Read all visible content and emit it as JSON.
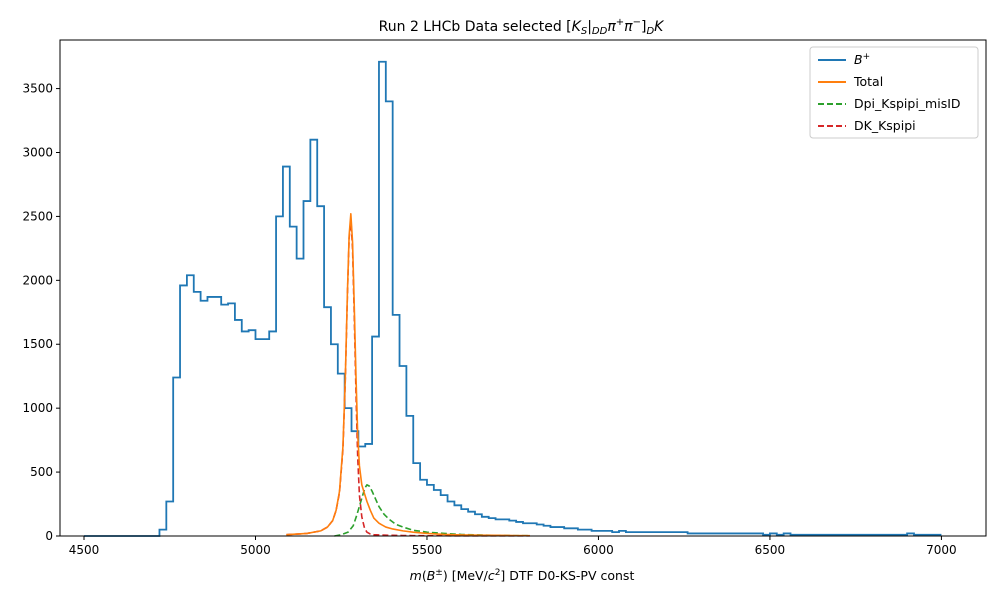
{
  "chart_data": {
    "type": "line",
    "title": "Run 2 LHCb Data selected [K_S|_{DD}π⁺π⁻]_D K",
    "title_parts": {
      "prefix": "Run 2 LHCb Data selected [",
      "k": "K",
      "k_sub": "S",
      "bar": "|",
      "dd_sub": "DD",
      "pi1": "π",
      "pi1_sup": "+",
      "pi2": "π",
      "pi2_sup": "−",
      "close": "]",
      "d_sub": "D",
      "suffix": "K"
    },
    "xlabel": "m(B^±) [MeV/c^2] DTF D0-KS-PV const",
    "xlabel_parts": {
      "m": "m",
      "open": "(",
      "b": "B",
      "b_sup": "±",
      "mid": ") [MeV/",
      "c": "c",
      "c_sup": "2",
      "suffix": "] DTF D0-KS-PV const"
    },
    "ylabel": "",
    "xlim": [
      4430,
      7130
    ],
    "ylim": [
      0,
      3880
    ],
    "xticks": [
      4500,
      5000,
      5500,
      6000,
      6500,
      7000
    ],
    "yticks": [
      0,
      500,
      1000,
      1500,
      2000,
      2500,
      3000,
      3500
    ],
    "grid": false,
    "legend_position": "top-right",
    "legend": [
      "B^+",
      "Total",
      "Dpi_Kspipi_misID",
      "DK_Kspipi"
    ],
    "histogram": {
      "name": "B^+",
      "color": "#1f77b4",
      "bin_start": 4500,
      "bin_width": 20,
      "counts": [
        0,
        0,
        0,
        0,
        0,
        0,
        0,
        0,
        0,
        0,
        0,
        50,
        270,
        1240,
        1960,
        2040,
        1910,
        1840,
        1870,
        1870,
        1810,
        1820,
        1690,
        1600,
        1610,
        1540,
        1540,
        1600,
        2500,
        2890,
        2420,
        2170,
        2620,
        3100,
        2580,
        1790,
        1500,
        1270,
        1000,
        820,
        700,
        720,
        1560,
        3710,
        3400,
        1730,
        1330,
        940,
        570,
        440,
        400,
        360,
        320,
        270,
        240,
        210,
        190,
        170,
        150,
        140,
        130,
        130,
        120,
        110,
        100,
        100,
        90,
        80,
        70,
        70,
        60,
        60,
        50,
        50,
        40,
        40,
        40,
        30,
        40,
        30,
        30,
        30,
        30,
        30,
        30,
        30,
        30,
        30,
        20,
        20,
        20,
        20,
        20,
        20,
        20,
        20,
        20,
        20,
        20,
        10,
        20,
        10,
        20,
        10,
        10,
        10,
        10,
        10,
        10,
        10,
        10,
        10,
        10,
        10,
        10,
        10,
        10,
        10,
        10,
        10,
        20,
        10,
        10,
        10,
        10
      ]
    },
    "series": [
      {
        "name": "Total",
        "color": "#ff7f0e",
        "dashed": false,
        "x": [
          5090,
          5150,
          5190,
          5210,
          5225,
          5235,
          5245,
          5255,
          5262,
          5268,
          5273,
          5278,
          5283,
          5288,
          5293,
          5298,
          5303,
          5310,
          5318,
          5325,
          5335,
          5345,
          5360,
          5380,
          5400,
          5430,
          5460,
          5500,
          5550,
          5600,
          5650,
          5700,
          5750,
          5800
        ],
        "y": [
          10,
          20,
          40,
          70,
          120,
          200,
          350,
          700,
          1250,
          1900,
          2350,
          2520,
          2300,
          1800,
          1250,
          800,
          550,
          400,
          330,
          270,
          200,
          140,
          100,
          70,
          55,
          40,
          30,
          20,
          12,
          8,
          6,
          5,
          4,
          3
        ]
      },
      {
        "name": "Dpi_Kspipi_misID",
        "color": "#2ca02c",
        "dashed": true,
        "x": [
          5230,
          5250,
          5270,
          5285,
          5295,
          5305,
          5315,
          5320,
          5325,
          5332,
          5340,
          5350,
          5360,
          5375,
          5390,
          5410,
          5430,
          5460,
          5500,
          5550,
          5600,
          5650,
          5700,
          5750,
          5800
        ],
        "y": [
          0,
          10,
          30,
          80,
          160,
          250,
          340,
          380,
          400,
          390,
          350,
          290,
          230,
          170,
          130,
          90,
          70,
          45,
          30,
          20,
          12,
          8,
          5,
          3,
          2
        ]
      },
      {
        "name": "DK_Kspipi",
        "color": "#d62728",
        "dashed": true,
        "x": [
          5090,
          5150,
          5190,
          5210,
          5225,
          5235,
          5245,
          5255,
          5262,
          5268,
          5273,
          5278,
          5283,
          5288,
          5293,
          5298,
          5303,
          5310,
          5318,
          5325,
          5335,
          5345,
          5360,
          5380,
          5400,
          5430,
          5460,
          5500,
          5550,
          5600,
          5650,
          5700,
          5750,
          5800
        ],
        "y": [
          10,
          20,
          40,
          70,
          120,
          200,
          340,
          680,
          1230,
          1880,
          2330,
          2480,
          2250,
          1720,
          1120,
          620,
          320,
          150,
          60,
          30,
          15,
          10,
          8,
          6,
          5,
          4,
          3,
          2,
          2,
          1,
          1,
          1,
          1,
          1
        ]
      }
    ]
  }
}
